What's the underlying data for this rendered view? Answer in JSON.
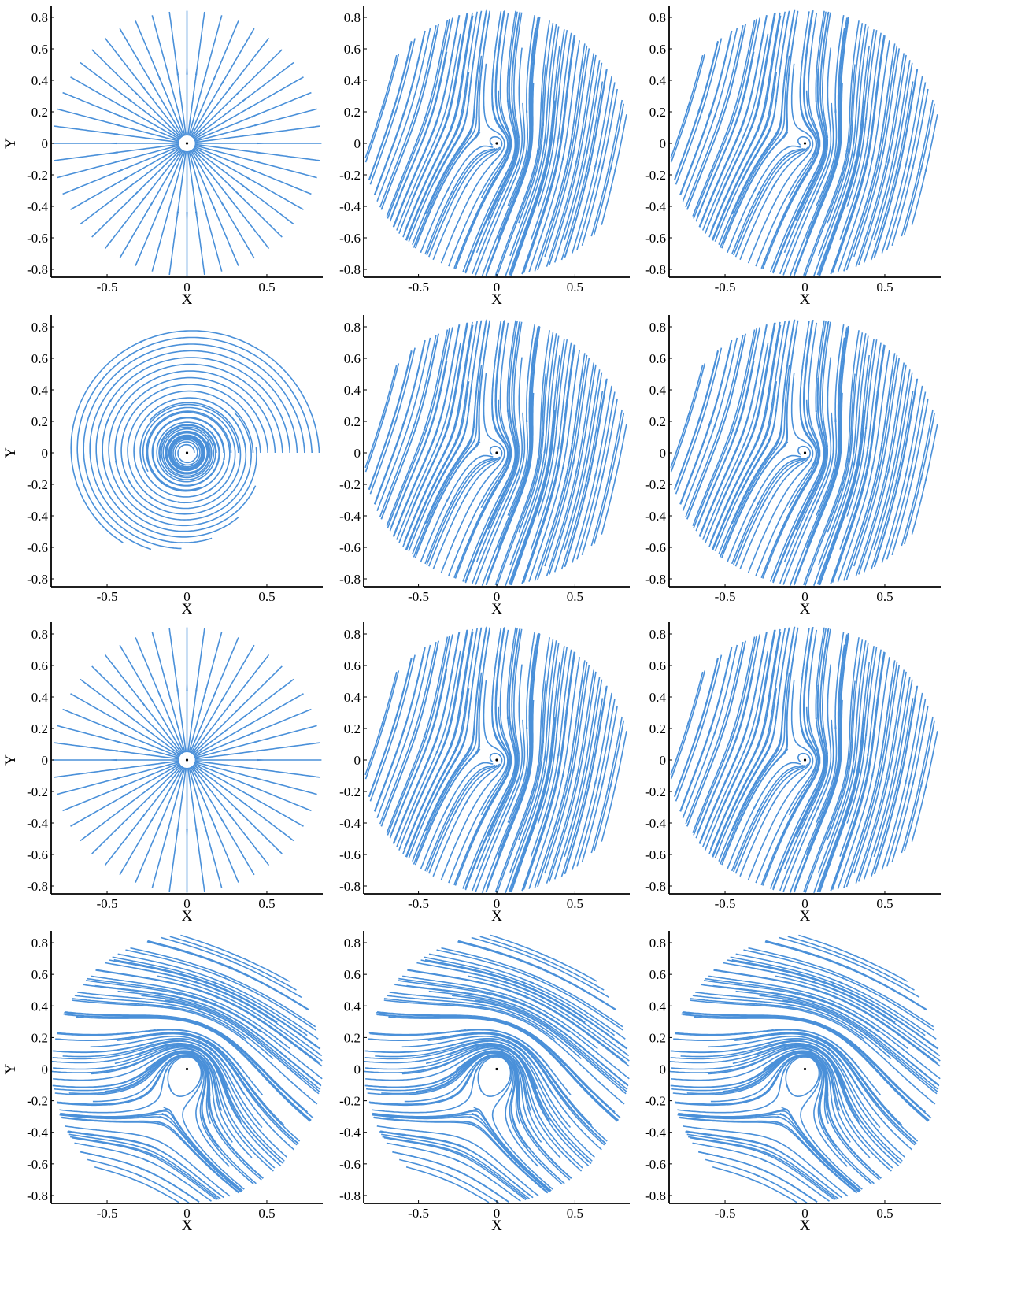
{
  "colors": {
    "stream": "#4a90d9",
    "axis": "#000000",
    "background": "#ffffff"
  },
  "chart_data": [
    {
      "type": "streamplot",
      "pattern": "source",
      "xlabel": "X",
      "ylabel": "Y",
      "xlim": [
        -0.85,
        0.85
      ],
      "ylim": [
        -0.85,
        0.85
      ],
      "xticks": [
        "-0.5",
        "0",
        "0.5"
      ],
      "yticks": [
        "0.8",
        "0.6",
        "0.4",
        "0.2",
        "0",
        "-0.2",
        "-0.4",
        "-0.6",
        "-0.8"
      ],
      "critical_point": [
        0,
        0
      ],
      "grid": false,
      "legend": "none"
    },
    {
      "type": "streamplot",
      "pattern": "spiral-in-shear",
      "xlabel": "X",
      "ylabel": "",
      "xlim": [
        -0.85,
        0.85
      ],
      "ylim": [
        -0.85,
        0.85
      ],
      "xticks": [
        "-0.5",
        "0",
        "0.5"
      ],
      "yticks": [
        "0.8",
        "0.6",
        "0.4",
        "0.2",
        "0",
        "-0.2",
        "-0.4",
        "-0.6",
        "-0.8"
      ],
      "critical_point": [
        0,
        0
      ],
      "grid": false,
      "legend": "none"
    },
    {
      "type": "streamplot",
      "pattern": "spiral-in-shear",
      "xlabel": "X",
      "ylabel": "",
      "xlim": [
        -0.85,
        0.85
      ],
      "ylim": [
        -0.85,
        0.85
      ],
      "xticks": [
        "-0.5",
        "0",
        "0.5"
      ],
      "yticks": [
        "0.8",
        "0.6",
        "0.4",
        "0.2",
        "0",
        "-0.2",
        "-0.4",
        "-0.6",
        "-0.8"
      ],
      "critical_point": [
        0,
        0
      ],
      "grid": false,
      "legend": "none"
    },
    {
      "type": "streamplot",
      "pattern": "center",
      "xlabel": "X",
      "ylabel": "Y",
      "xlim": [
        -0.85,
        0.85
      ],
      "ylim": [
        -0.85,
        0.85
      ],
      "xticks": [
        "-0.5",
        "0",
        "0.5"
      ],
      "yticks": [
        "0.8",
        "0.6",
        "0.4",
        "0.2",
        "0",
        "-0.2",
        "-0.4",
        "-0.6",
        "-0.8"
      ],
      "critical_point": [
        0,
        0
      ],
      "grid": false,
      "legend": "none"
    },
    {
      "type": "streamplot",
      "pattern": "spiral-in-shear",
      "xlabel": "X",
      "ylabel": "",
      "xlim": [
        -0.85,
        0.85
      ],
      "ylim": [
        -0.85,
        0.85
      ],
      "xticks": [
        "-0.5",
        "0",
        "0.5"
      ],
      "yticks": [
        "0.8",
        "0.6",
        "0.4",
        "0.2",
        "0",
        "-0.2",
        "-0.4",
        "-0.6",
        "-0.8"
      ],
      "critical_point": [
        0,
        0
      ],
      "grid": false,
      "legend": "none"
    },
    {
      "type": "streamplot",
      "pattern": "spiral-in-shear",
      "xlabel": "X",
      "ylabel": "",
      "xlim": [
        -0.85,
        0.85
      ],
      "ylim": [
        -0.85,
        0.85
      ],
      "xticks": [
        "-0.5",
        "0",
        "0.5"
      ],
      "yticks": [
        "0.8",
        "0.6",
        "0.4",
        "0.2",
        "0",
        "-0.2",
        "-0.4",
        "-0.6",
        "-0.8"
      ],
      "critical_point": [
        0,
        0
      ],
      "grid": false,
      "legend": "none"
    },
    {
      "type": "streamplot",
      "pattern": "source",
      "xlabel": "X",
      "ylabel": "Y",
      "xlim": [
        -0.85,
        0.85
      ],
      "ylim": [
        -0.85,
        0.85
      ],
      "xticks": [
        "-0.5",
        "0",
        "0.5"
      ],
      "yticks": [
        "0.8",
        "0.6",
        "0.4",
        "0.2",
        "0",
        "-0.2",
        "-0.4",
        "-0.6",
        "-0.8"
      ],
      "critical_point": [
        0,
        0
      ],
      "grid": false,
      "legend": "none"
    },
    {
      "type": "streamplot",
      "pattern": "spiral-in-shear",
      "xlabel": "X",
      "ylabel": "",
      "xlim": [
        -0.85,
        0.85
      ],
      "ylim": [
        -0.85,
        0.85
      ],
      "xticks": [
        "-0.5",
        "0",
        "0.5"
      ],
      "yticks": [
        "0.8",
        "0.6",
        "0.4",
        "0.2",
        "0",
        "-0.2",
        "-0.4",
        "-0.6",
        "-0.8"
      ],
      "critical_point": [
        0,
        0
      ],
      "grid": false,
      "legend": "none"
    },
    {
      "type": "streamplot",
      "pattern": "spiral-in-shear",
      "xlabel": "X",
      "ylabel": "",
      "xlim": [
        -0.85,
        0.85
      ],
      "ylim": [
        -0.85,
        0.85
      ],
      "xticks": [
        "-0.5",
        "0",
        "0.5"
      ],
      "yticks": [
        "0.8",
        "0.6",
        "0.4",
        "0.2",
        "0",
        "-0.2",
        "-0.4",
        "-0.6",
        "-0.8"
      ],
      "critical_point": [
        0,
        0
      ],
      "grid": false,
      "legend": "none"
    },
    {
      "type": "streamplot",
      "pattern": "center-shear",
      "xlabel": "X",
      "ylabel": "Y",
      "xlim": [
        -0.85,
        0.85
      ],
      "ylim": [
        -0.85,
        0.85
      ],
      "xticks": [
        "-0.5",
        "0",
        "0.5"
      ],
      "yticks": [
        "0.8",
        "0.6",
        "0.4",
        "0.2",
        "0",
        "-0.2",
        "-0.4",
        "-0.6",
        "-0.8"
      ],
      "critical_point": [
        0,
        0
      ],
      "grid": false,
      "legend": "none"
    },
    {
      "type": "streamplot",
      "pattern": "center-shear",
      "xlabel": "X",
      "ylabel": "",
      "xlim": [
        -0.85,
        0.85
      ],
      "ylim": [
        -0.85,
        0.85
      ],
      "xticks": [
        "-0.5",
        "0",
        "0.5"
      ],
      "yticks": [
        "0.8",
        "0.6",
        "0.4",
        "0.2",
        "0",
        "-0.2",
        "-0.4",
        "-0.6",
        "-0.8"
      ],
      "critical_point": [
        0,
        0
      ],
      "grid": false,
      "legend": "none"
    },
    {
      "type": "streamplot",
      "pattern": "center-shear",
      "xlabel": "X",
      "ylabel": "",
      "xlim": [
        -0.85,
        0.85
      ],
      "ylim": [
        -0.85,
        0.85
      ],
      "xticks": [
        "-0.5",
        "0",
        "0.5"
      ],
      "yticks": [
        "0.8",
        "0.6",
        "0.4",
        "0.2",
        "0",
        "-0.2",
        "-0.4",
        "-0.6",
        "-0.8"
      ],
      "critical_point": [
        0,
        0
      ],
      "grid": false,
      "legend": "none"
    }
  ]
}
